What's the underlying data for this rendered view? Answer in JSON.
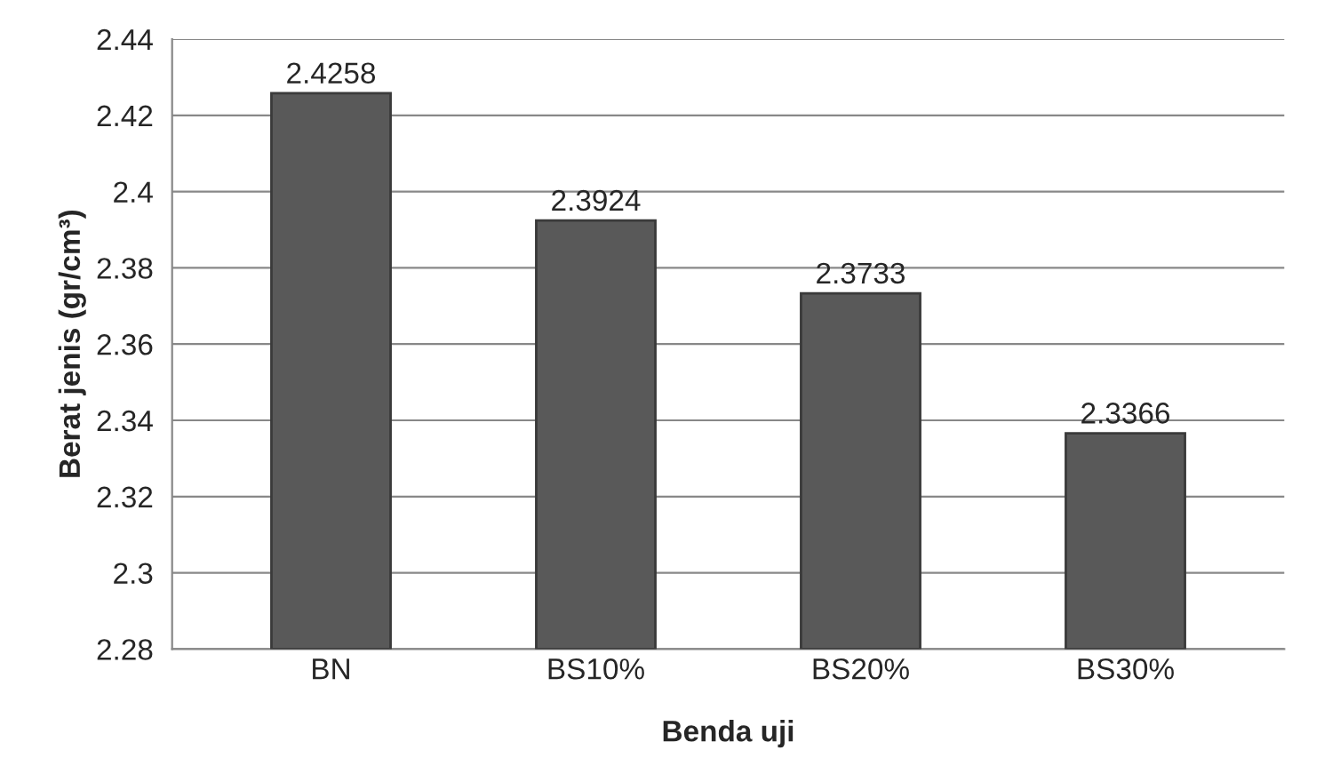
{
  "chart_data": {
    "type": "bar",
    "xlabel": "Benda uji",
    "ylabel": "Berat jenis (gr/cm³)",
    "categories": [
      "BN",
      "BS10%",
      "BS20%",
      "BS30%"
    ],
    "values": [
      2.4258,
      2.3924,
      2.3733,
      2.3366
    ],
    "color": "#595959",
    "ylim": [
      2.28,
      2.44
    ],
    "yticks": [
      2.28,
      2.3,
      2.32,
      2.34,
      2.36,
      2.38,
      2.4,
      2.42,
      2.44
    ],
    "grid": "y",
    "data_labels": true
  }
}
